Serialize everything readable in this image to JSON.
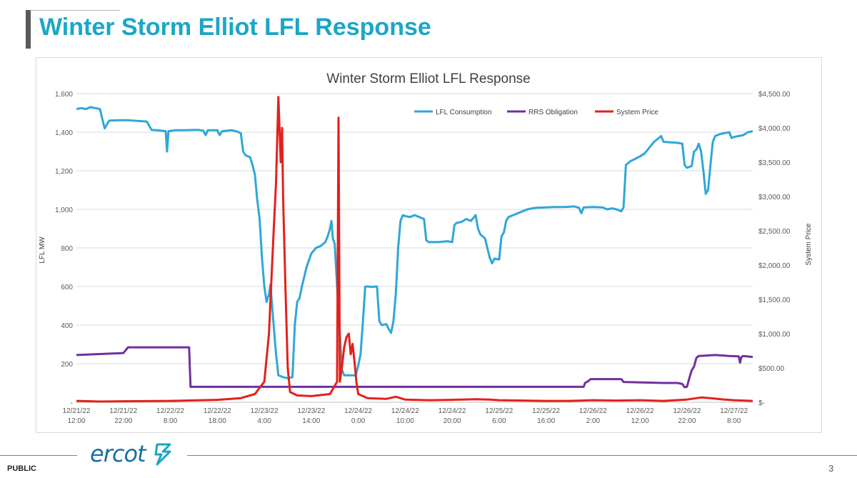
{
  "slide": {
    "title": "Winter Storm Elliot LFL Response",
    "footer_label": "PUBLIC",
    "logo_text": "ercot",
    "page_number": "3"
  },
  "chart_data": {
    "type": "line",
    "title": "Winter Storm Elliot LFL Response",
    "ylabel": "LFL MW",
    "y2label": "System Price",
    "ylim": [
      0,
      1600
    ],
    "y2lim": [
      0,
      4500
    ],
    "yticks": [
      0,
      200,
      400,
      600,
      800,
      1000,
      1200,
      1400,
      1600
    ],
    "yticklabels": [
      "-",
      "200",
      "400",
      "600",
      "800",
      "1,000",
      "1,200",
      "1,400",
      "1,600"
    ],
    "y2ticks": [
      0,
      500,
      1000,
      1500,
      2000,
      2500,
      3000,
      3500,
      4000,
      4500
    ],
    "y2ticklabels": [
      "$-",
      "$500.00",
      "$1,000.00",
      "$1,500.00",
      "$2,000.00",
      "$2,500.00",
      "$3,000.00",
      "$3,500.00",
      "$4,000.00",
      "$4,500.00"
    ],
    "xlim": [
      0,
      144
    ],
    "xunit": "hours from 12/21/22 12:00",
    "xticks": [
      {
        "x": 0,
        "date": "12/21/22",
        "time": "12:00"
      },
      {
        "x": 10,
        "date": "12/21/22",
        "time": "22:00"
      },
      {
        "x": 20,
        "date": "12/22/22",
        "time": "8:00"
      },
      {
        "x": 30,
        "date": "12/22/22",
        "time": "18:00"
      },
      {
        "x": 40,
        "date": "12/23/22",
        "time": "4:00"
      },
      {
        "x": 50,
        "date": "12/23/22",
        "time": "14:00"
      },
      {
        "x": 60,
        "date": "12/24/22",
        "time": "0:00"
      },
      {
        "x": 70,
        "date": "12/24/22",
        "time": "10:00"
      },
      {
        "x": 80,
        "date": "12/24/22",
        "time": "20:00"
      },
      {
        "x": 90,
        "date": "12/25/22",
        "time": "6:00"
      },
      {
        "x": 100,
        "date": "12/25/22",
        "time": "16:00"
      },
      {
        "x": 110,
        "date": "12/26/22",
        "time": "2:00"
      },
      {
        "x": 120,
        "date": "12/26/22",
        "time": "12:00"
      },
      {
        "x": 130,
        "date": "12/26/22",
        "time": "22:00"
      },
      {
        "x": 140,
        "date": "12/27/22",
        "time": "8:00"
      }
    ],
    "grid": true,
    "legend_position": "top-right",
    "series": [
      {
        "name": "LFL Consumption",
        "axis": "left",
        "color": "#2ea7d8",
        "points": [
          [
            0,
            1520
          ],
          [
            1,
            1525
          ],
          [
            2,
            1520
          ],
          [
            3,
            1530
          ],
          [
            4,
            1525
          ],
          [
            5,
            1520
          ],
          [
            5.5,
            1470
          ],
          [
            6,
            1420
          ],
          [
            6.5,
            1440
          ],
          [
            7,
            1460
          ],
          [
            9,
            1462
          ],
          [
            11,
            1462
          ],
          [
            13,
            1458
          ],
          [
            15,
            1455
          ],
          [
            16,
            1412
          ],
          [
            18,
            1408
          ],
          [
            19,
            1405
          ],
          [
            19.3,
            1300
          ],
          [
            19.6,
            1405
          ],
          [
            21,
            1410
          ],
          [
            23,
            1410
          ],
          [
            26,
            1412
          ],
          [
            27,
            1408
          ],
          [
            27.5,
            1385
          ],
          [
            28,
            1410
          ],
          [
            30,
            1410
          ],
          [
            30.5,
            1385
          ],
          [
            31,
            1405
          ],
          [
            33,
            1410
          ],
          [
            34,
            1405
          ],
          [
            35,
            1395
          ],
          [
            35.5,
            1300
          ],
          [
            36,
            1280
          ],
          [
            37,
            1270
          ],
          [
            37.5,
            1230
          ],
          [
            38,
            1180
          ],
          [
            38.5,
            1050
          ],
          [
            39,
            950
          ],
          [
            39.5,
            750
          ],
          [
            40,
            600
          ],
          [
            40.5,
            520
          ],
          [
            41,
            560
          ],
          [
            41.3,
            610
          ],
          [
            41.6,
            520
          ],
          [
            42,
            400
          ],
          [
            42.5,
            250
          ],
          [
            43,
            140
          ],
          [
            44,
            130
          ],
          [
            45,
            125
          ],
          [
            46,
            130
          ],
          [
            46.5,
            400
          ],
          [
            47,
            520
          ],
          [
            47.5,
            540
          ],
          [
            48,
            600
          ],
          [
            48.5,
            650
          ],
          [
            49,
            700
          ],
          [
            50,
            770
          ],
          [
            51,
            800
          ],
          [
            52,
            810
          ],
          [
            53,
            830
          ],
          [
            53.5,
            860
          ],
          [
            54,
            900
          ],
          [
            54.3,
            940
          ],
          [
            54.6,
            850
          ],
          [
            55,
            820
          ],
          [
            55.5,
            600
          ],
          [
            56,
            400
          ],
          [
            56.5,
            170
          ],
          [
            57,
            140
          ],
          [
            58,
            140
          ],
          [
            59,
            140
          ],
          [
            59.5,
            140
          ],
          [
            60,
            190
          ],
          [
            60.5,
            250
          ],
          [
            61,
            420
          ],
          [
            61.5,
            600
          ],
          [
            62,
            600
          ],
          [
            63,
            598
          ],
          [
            64,
            600
          ],
          [
            64.5,
            420
          ],
          [
            65,
            400
          ],
          [
            66,
            405
          ],
          [
            66.5,
            380
          ],
          [
            67,
            360
          ],
          [
            67.5,
            420
          ],
          [
            68,
            560
          ],
          [
            68.5,
            800
          ],
          [
            69,
            940
          ],
          [
            69.5,
            970
          ],
          [
            70,
            965
          ],
          [
            71,
            960
          ],
          [
            72,
            970
          ],
          [
            73,
            960
          ],
          [
            74,
            950
          ],
          [
            74.5,
            840
          ],
          [
            75,
            830
          ],
          [
            77,
            830
          ],
          [
            79,
            835
          ],
          [
            80,
            830
          ],
          [
            80.5,
            920
          ],
          [
            81,
            930
          ],
          [
            82,
            935
          ],
          [
            83,
            950
          ],
          [
            84,
            940
          ],
          [
            85,
            970
          ],
          [
            85.5,
            900
          ],
          [
            86,
            870
          ],
          [
            87,
            850
          ],
          [
            87.5,
            800
          ],
          [
            88,
            750
          ],
          [
            88.5,
            720
          ],
          [
            89,
            745
          ],
          [
            90,
            740
          ],
          [
            90.5,
            860
          ],
          [
            91,
            880
          ],
          [
            91.5,
            940
          ],
          [
            92,
            960
          ],
          [
            93,
            970
          ],
          [
            94,
            980
          ],
          [
            95,
            990
          ],
          [
            96,
            1000
          ],
          [
            97,
            1005
          ],
          [
            98,
            1008
          ],
          [
            100,
            1010
          ],
          [
            102,
            1012
          ],
          [
            104,
            1012
          ],
          [
            106,
            1015
          ],
          [
            107,
            1008
          ],
          [
            107.5,
            980
          ],
          [
            108,
            1010
          ],
          [
            110,
            1012
          ],
          [
            112,
            1010
          ],
          [
            113,
            1000
          ],
          [
            114,
            1005
          ],
          [
            115,
            1000
          ],
          [
            116,
            990
          ],
          [
            116.5,
            1010
          ],
          [
            117,
            1230
          ],
          [
            118,
            1250
          ],
          [
            119,
            1262
          ],
          [
            120,
            1275
          ],
          [
            121,
            1290
          ],
          [
            122,
            1320
          ],
          [
            123,
            1350
          ],
          [
            124,
            1370
          ],
          [
            124.5,
            1380
          ],
          [
            125,
            1350
          ],
          [
            126,
            1348
          ],
          [
            128,
            1345
          ],
          [
            129,
            1340
          ],
          [
            129.5,
            1230
          ],
          [
            130,
            1215
          ],
          [
            131,
            1225
          ],
          [
            131.5,
            1300
          ],
          [
            132,
            1310
          ],
          [
            132.5,
            1340
          ],
          [
            133,
            1300
          ],
          [
            133.5,
            1200
          ],
          [
            134,
            1080
          ],
          [
            134.5,
            1100
          ],
          [
            135,
            1230
          ],
          [
            135.5,
            1350
          ],
          [
            136,
            1380
          ],
          [
            137,
            1390
          ],
          [
            138,
            1395
          ],
          [
            139,
            1400
          ],
          [
            139.5,
            1370
          ],
          [
            140,
            1375
          ],
          [
            141,
            1380
          ],
          [
            142,
            1385
          ],
          [
            143,
            1400
          ],
          [
            144,
            1405
          ]
        ]
      },
      {
        "name": "RRS Obligation",
        "axis": "left",
        "color": "#7030a0",
        "points": [
          [
            0,
            245
          ],
          [
            5,
            250
          ],
          [
            10,
            255
          ],
          [
            11,
            285
          ],
          [
            24,
            285
          ],
          [
            24.3,
            80
          ],
          [
            50,
            80
          ],
          [
            80,
            80
          ],
          [
            108,
            80
          ],
          [
            108.3,
            100
          ],
          [
            109,
            110
          ],
          [
            109.5,
            120
          ],
          [
            116,
            120
          ],
          [
            116.5,
            105
          ],
          [
            125,
            100
          ],
          [
            128,
            100
          ],
          [
            129,
            95
          ],
          [
            129.5,
            78
          ],
          [
            130,
            80
          ],
          [
            130.5,
            125
          ],
          [
            131,
            165
          ],
          [
            131.5,
            185
          ],
          [
            132,
            230
          ],
          [
            132.5,
            240
          ],
          [
            136,
            245
          ],
          [
            139,
            240
          ],
          [
            141,
            238
          ],
          [
            141.3,
            205
          ],
          [
            141.6,
            235
          ],
          [
            142,
            240
          ],
          [
            144,
            235
          ]
        ]
      },
      {
        "name": "System Price",
        "axis": "right",
        "color": "#e3201b",
        "points": [
          [
            0,
            20
          ],
          [
            5,
            10
          ],
          [
            10,
            15
          ],
          [
            20,
            20
          ],
          [
            30,
            35
          ],
          [
            35,
            60
          ],
          [
            38,
            120
          ],
          [
            40,
            300
          ],
          [
            41,
            1000
          ],
          [
            42,
            2500
          ],
          [
            42.5,
            3200
          ],
          [
            43,
            4450
          ],
          [
            43.5,
            3500
          ],
          [
            43.8,
            4000
          ],
          [
            44,
            3000
          ],
          [
            44.5,
            1700
          ],
          [
            45,
            500
          ],
          [
            45.5,
            150
          ],
          [
            47,
            100
          ],
          [
            50,
            90
          ],
          [
            54,
            120
          ],
          [
            55.5,
            300
          ],
          [
            55.8,
            4150
          ],
          [
            56.1,
            300
          ],
          [
            56.5,
            500
          ],
          [
            57,
            800
          ],
          [
            57.5,
            950
          ],
          [
            58,
            1000
          ],
          [
            58.4,
            700
          ],
          [
            58.8,
            850
          ],
          [
            59.2,
            600
          ],
          [
            59.6,
            300
          ],
          [
            60,
            120
          ],
          [
            62,
            60
          ],
          [
            66,
            50
          ],
          [
            68,
            80
          ],
          [
            70,
            40
          ],
          [
            75,
            30
          ],
          [
            80,
            35
          ],
          [
            85,
            45
          ],
          [
            88,
            40
          ],
          [
            90,
            30
          ],
          [
            95,
            25
          ],
          [
            100,
            20
          ],
          [
            105,
            20
          ],
          [
            110,
            30
          ],
          [
            115,
            25
          ],
          [
            120,
            30
          ],
          [
            125,
            20
          ],
          [
            130,
            40
          ],
          [
            133,
            70
          ],
          [
            135,
            60
          ],
          [
            138,
            40
          ],
          [
            140,
            30
          ],
          [
            144,
            20
          ]
        ]
      }
    ]
  }
}
